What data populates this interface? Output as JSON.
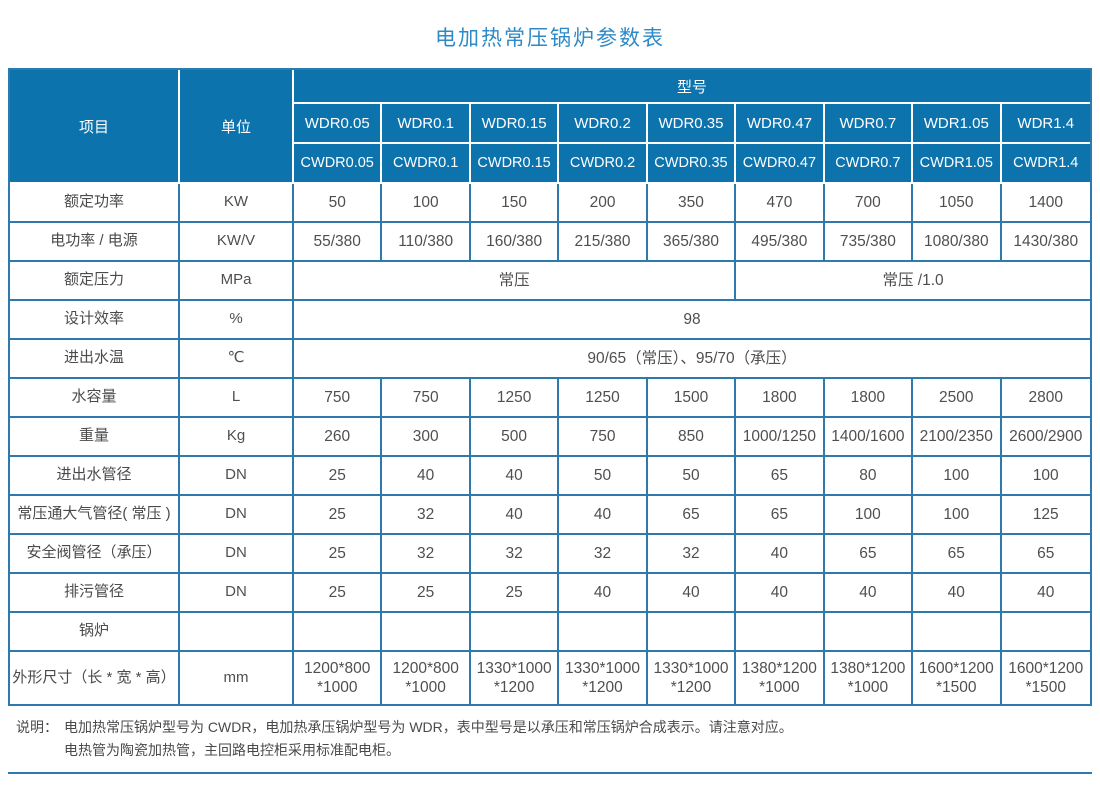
{
  "title": "电加热常压锅炉参数表",
  "colors": {
    "header_background": "#0d73ad",
    "grid_line": "#2e7aae",
    "title_text": "#2e8ac7",
    "body_text": "#4f4f4f",
    "header_text": "#ffffff"
  },
  "table": {
    "item_header": "项目",
    "unit_header": "单位",
    "model_header": "型号",
    "models_row1": [
      "WDR0.05",
      "WDR0.1",
      "WDR0.15",
      "WDR0.2",
      "WDR0.35",
      "WDR0.47",
      "WDR0.7",
      "WDR1.05",
      "WDR1.4"
    ],
    "models_row2": [
      "CWDR0.05",
      "CWDR0.1",
      "CWDR0.15",
      "CWDR0.2",
      "CWDR0.35",
      "CWDR0.47",
      "CWDR0.7",
      "CWDR1.05",
      "CWDR1.4"
    ],
    "rows": [
      {
        "label": "额定功率",
        "unit": "KW",
        "values": [
          "50",
          "100",
          "150",
          "200",
          "350",
          "470",
          "700",
          "1050",
          "1400"
        ]
      },
      {
        "label": "电功率 / 电源",
        "unit": "KW/V",
        "values": [
          "55/380",
          "110/380",
          "160/380",
          "215/380",
          "365/380",
          "495/380",
          "735/380",
          "1080/380",
          "1430/380"
        ]
      },
      {
        "label": "额定压力",
        "unit": "MPa",
        "spans": [
          {
            "text": "常压",
            "span": 5
          },
          {
            "text": "常压 /1.0",
            "span": 4
          }
        ]
      },
      {
        "label": "设计效率",
        "unit": "%",
        "spans": [
          {
            "text": "98",
            "span": 9
          }
        ]
      },
      {
        "label": "进出水温",
        "unit": "℃",
        "spans": [
          {
            "text": "90/65（常压）、95/70（承压）",
            "span": 9
          }
        ]
      },
      {
        "label": "水容量",
        "unit": "L",
        "values": [
          "750",
          "750",
          "1250",
          "1250",
          "1500",
          "1800",
          "1800",
          "2500",
          "2800"
        ]
      },
      {
        "label": "重量",
        "unit": "Kg",
        "values": [
          "260",
          "300",
          "500",
          "750",
          "850",
          "1000/1250",
          "1400/1600",
          "2100/2350",
          "2600/2900"
        ]
      },
      {
        "label": "进出水管径",
        "unit": "DN",
        "values": [
          "25",
          "40",
          "40",
          "50",
          "50",
          "65",
          "80",
          "100",
          "100"
        ]
      },
      {
        "label": "常压通大气管径( 常压 )",
        "unit": "DN",
        "values": [
          "25",
          "32",
          "40",
          "40",
          "65",
          "65",
          "100",
          "100",
          "125"
        ]
      },
      {
        "label": "安全阀管径（承压）",
        "unit": "DN",
        "values": [
          "25",
          "32",
          "32",
          "32",
          "32",
          "40",
          "65",
          "65",
          "65"
        ]
      },
      {
        "label": "排污管径",
        "unit": "DN",
        "values": [
          "25",
          "25",
          "25",
          "40",
          "40",
          "40",
          "40",
          "40",
          "40"
        ]
      },
      {
        "label": "锅炉",
        "unit": "",
        "values": [
          "",
          "",
          "",
          "",
          "",
          "",
          "",
          "",
          ""
        ]
      },
      {
        "label": "外形尺寸（长 * 宽 * 高）",
        "unit": "mm",
        "values": [
          "1200*800\n*1000",
          "1200*800\n*1000",
          "1330*1000\n*1200",
          "1330*1000\n*1200",
          "1330*1000\n*1200",
          "1380*1200\n*1000",
          "1380*1200\n*1000",
          "1600*1200\n*1500",
          "1600*1200\n*1500"
        ]
      }
    ]
  },
  "note": {
    "prefix": "说明：",
    "line1": "电加热常压锅炉型号为 CWDR，电加热承压锅炉型号为 WDR，表中型号是以承压和常压锅炉合成表示。请注意对应。",
    "line2": "电热管为陶瓷加热管，主回路电控柜采用标准配电柜。"
  }
}
